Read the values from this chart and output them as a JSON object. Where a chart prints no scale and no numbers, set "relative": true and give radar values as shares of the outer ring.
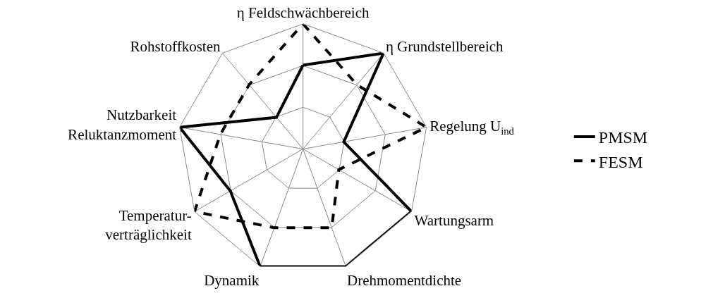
{
  "chart_data": {
    "type": "radar",
    "relative": true,
    "legend": "right",
    "grid": true,
    "categories": [
      "η Feldschwächbereich",
      "η Grundstellbereich",
      "Regelung U$_{ind}$",
      "Wartungsarm",
      "Drehmomentdichte",
      "Dynamik",
      "Temperatur-\nverträglichkeit",
      "Nutzbarkeit\nReluktanzmoment",
      "Rohstoffkosten"
    ],
    "series": [
      {
        "name": "PMSM",
        "color": "#000000",
        "line_style": "solid",
        "values": [
          0.67,
          1,
          0.33,
          1,
          1,
          1,
          0.67,
          1,
          0.33
        ]
      },
      {
        "name": "FESM",
        "color": "#000000",
        "line_style": "dashed",
        "values": [
          1,
          0.67,
          1,
          0.33,
          0.67,
          0.67,
          1,
          0.67,
          0.67
        ]
      }
    ]
  }
}
